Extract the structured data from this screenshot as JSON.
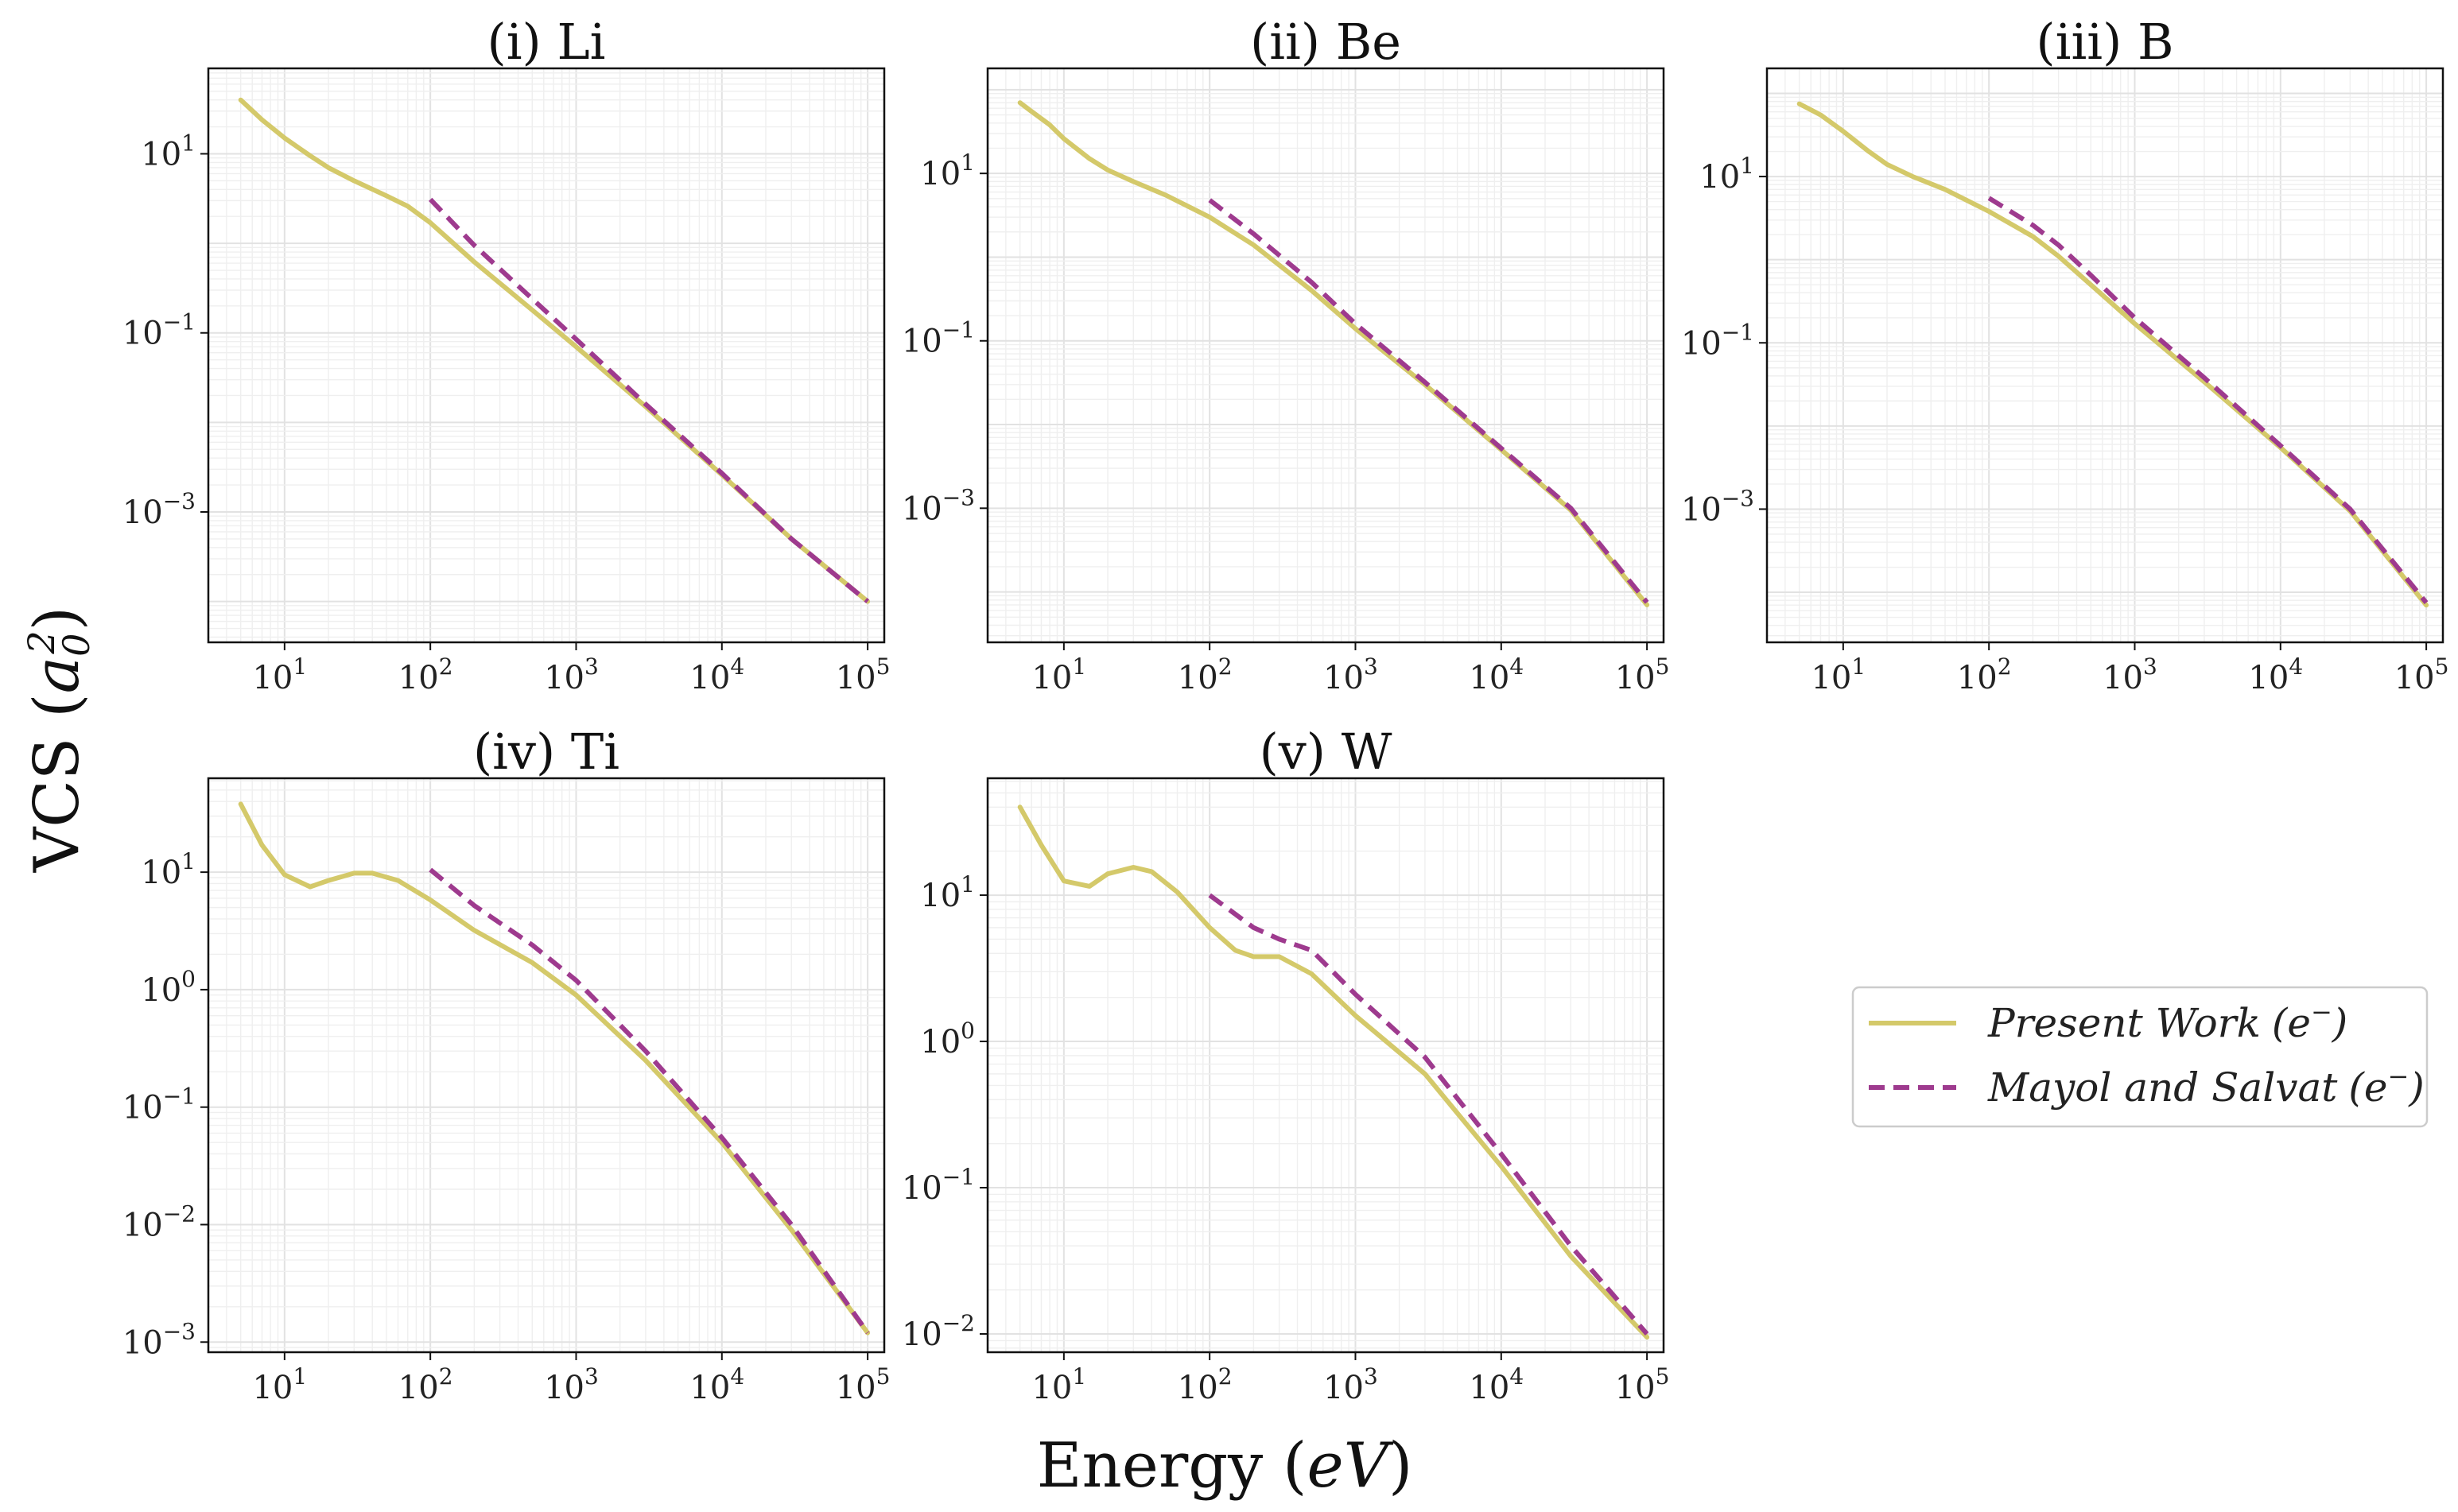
{
  "figure": {
    "xlabel_main": "Energy (",
    "xlabel_var": "eV",
    "xlabel_close": ")",
    "ylabel_main": "VCS (",
    "ylabel_var": "a",
    "ylabel_sub": "0",
    "ylabel_sup": "2",
    "ylabel_close": ")"
  },
  "legend": {
    "entries": [
      {
        "label": "Present Work",
        "suffix": "(e",
        "sup": "−",
        "close": ")",
        "color": "#d4c96a",
        "dash": false
      },
      {
        "label": "Mayol and Salvat",
        "suffix": "(e",
        "sup": "−",
        "close": ")",
        "color": "#9e3a8e",
        "dash": true
      }
    ]
  },
  "chart_data": [
    {
      "type": "line",
      "title": "(i) Li",
      "xscale": "log",
      "yscale": "log",
      "xlim": [
        3,
        130000
      ],
      "ylim": [
        3.5e-05,
        90
      ],
      "xticks": [
        10,
        100,
        1000,
        10000,
        100000
      ],
      "xtick_labels": [
        {
          "base": "10",
          "exp": "1"
        },
        {
          "base": "10",
          "exp": "2"
        },
        {
          "base": "10",
          "exp": "3"
        },
        {
          "base": "10",
          "exp": "4"
        },
        {
          "base": "10",
          "exp": "5"
        }
      ],
      "yticks": [
        10,
        0.1,
        0.001
      ],
      "ytick_labels": [
        {
          "base": "10",
          "exp": "1"
        },
        {
          "base": "10",
          "exp": "−1"
        },
        {
          "base": "10",
          "exp": "−3"
        }
      ],
      "series": [
        {
          "name": "Present Work (e−)",
          "color": "#d4c96a",
          "x": [
            5,
            7,
            10,
            15,
            20,
            30,
            50,
            70,
            100,
            200,
            500,
            1000,
            3000,
            10000,
            30000,
            100000
          ],
          "y": [
            40,
            24,
            15,
            9.5,
            7,
            5,
            3.4,
            2.6,
            1.7,
            0.62,
            0.18,
            0.07,
            0.015,
            0.0026,
            0.0005,
            0.0001
          ]
        },
        {
          "name": "Mayol and Salvat (e−)",
          "color": "#9e3a8e",
          "x": [
            100,
            200,
            500,
            1000,
            3000,
            10000,
            30000,
            100000
          ],
          "y": [
            3.1,
            0.95,
            0.24,
            0.085,
            0.016,
            0.0027,
            0.0005,
            0.0001
          ]
        }
      ]
    },
    {
      "type": "line",
      "title": "(ii) Be",
      "xscale": "log",
      "yscale": "log",
      "xlim": [
        3,
        130000
      ],
      "ylim": [
        2.5e-05,
        180
      ],
      "xticks": [
        10,
        100,
        1000,
        10000,
        100000
      ],
      "xtick_labels": [
        {
          "base": "10",
          "exp": "1"
        },
        {
          "base": "10",
          "exp": "2"
        },
        {
          "base": "10",
          "exp": "3"
        },
        {
          "base": "10",
          "exp": "4"
        },
        {
          "base": "10",
          "exp": "5"
        }
      ],
      "yticks": [
        10,
        0.1,
        0.001
      ],
      "ytick_labels": [
        {
          "base": "10",
          "exp": "1"
        },
        {
          "base": "10",
          "exp": "−1"
        },
        {
          "base": "10",
          "exp": "−3"
        }
      ],
      "series": [
        {
          "name": "Present Work (e−)",
          "color": "#d4c96a",
          "x": [
            5,
            6,
            8,
            10,
            15,
            20,
            30,
            50,
            100,
            200,
            500,
            1000,
            3000,
            10000,
            30000,
            100000
          ],
          "y": [
            70,
            55,
            38,
            26,
            15,
            11,
            8,
            5.5,
            3,
            1.4,
            0.4,
            0.14,
            0.03,
            0.005,
            0.00095,
            7e-05
          ]
        },
        {
          "name": "Mayol and Salvat (e−)",
          "color": "#9e3a8e",
          "x": [
            100,
            200,
            500,
            1000,
            3000,
            10000,
            30000,
            100000
          ],
          "y": [
            4.8,
            1.9,
            0.5,
            0.16,
            0.032,
            0.0052,
            0.001,
            7.5e-05
          ]
        }
      ]
    },
    {
      "type": "line",
      "title": "(iii) B",
      "xscale": "log",
      "yscale": "log",
      "xlim": [
        3,
        130000
      ],
      "ylim": [
        2.5e-05,
        200
      ],
      "xticks": [
        10,
        100,
        1000,
        10000,
        100000
      ],
      "xtick_labels": [
        {
          "base": "10",
          "exp": "1"
        },
        {
          "base": "10",
          "exp": "2"
        },
        {
          "base": "10",
          "exp": "3"
        },
        {
          "base": "10",
          "exp": "4"
        },
        {
          "base": "10",
          "exp": "5"
        }
      ],
      "yticks": [
        10,
        0.1,
        0.001
      ],
      "ytick_labels": [
        {
          "base": "10",
          "exp": "1"
        },
        {
          "base": "10",
          "exp": "−1"
        },
        {
          "base": "10",
          "exp": "−3"
        }
      ],
      "series": [
        {
          "name": "Present Work (e−)",
          "color": "#d4c96a",
          "x": [
            5,
            7,
            10,
            15,
            20,
            30,
            50,
            100,
            200,
            300,
            500,
            1000,
            3000,
            10000,
            30000,
            100000
          ],
          "y": [
            75,
            55,
            35,
            20,
            14,
            10,
            7,
            3.8,
            1.9,
            1.1,
            0.5,
            0.17,
            0.034,
            0.0055,
            0.00095,
            7e-05
          ]
        },
        {
          "name": "Mayol and Salvat (e−)",
          "color": "#9e3a8e",
          "x": [
            100,
            200,
            300,
            500,
            1000,
            3000,
            10000,
            30000,
            100000
          ],
          "y": [
            5.5,
            2.6,
            1.5,
            0.65,
            0.2,
            0.038,
            0.0058,
            0.001,
            7.5e-05
          ]
        }
      ]
    },
    {
      "type": "line",
      "title": "(iv) Ti",
      "xscale": "log",
      "yscale": "log",
      "xlim": [
        3,
        130000
      ],
      "ylim": [
        0.00082,
        63
      ],
      "xticks": [
        10,
        100,
        1000,
        10000,
        100000
      ],
      "xtick_labels": [
        {
          "base": "10",
          "exp": "1"
        },
        {
          "base": "10",
          "exp": "2"
        },
        {
          "base": "10",
          "exp": "3"
        },
        {
          "base": "10",
          "exp": "4"
        },
        {
          "base": "10",
          "exp": "5"
        }
      ],
      "yticks": [
        10,
        1,
        0.1,
        0.01,
        0.001
      ],
      "ytick_labels": [
        {
          "base": "10",
          "exp": "1"
        },
        {
          "base": "10",
          "exp": "0"
        },
        {
          "base": "10",
          "exp": "−1"
        },
        {
          "base": "10",
          "exp": "−2"
        },
        {
          "base": "10",
          "exp": "−3"
        }
      ],
      "series": [
        {
          "name": "Present Work (e−)",
          "color": "#d4c96a",
          "x": [
            5,
            7,
            10,
            15,
            20,
            30,
            40,
            60,
            100,
            200,
            500,
            1000,
            3000,
            10000,
            30000,
            100000
          ],
          "y": [
            38,
            17,
            9.5,
            7.5,
            8.5,
            9.8,
            9.8,
            8.5,
            5.8,
            3.2,
            1.7,
            0.9,
            0.25,
            0.05,
            0.009,
            0.0012
          ]
        },
        {
          "name": "Mayol and Salvat (e−)",
          "color": "#9e3a8e",
          "x": [
            100,
            200,
            500,
            1000,
            3000,
            10000,
            30000,
            100000
          ],
          "y": [
            10.5,
            5.2,
            2.4,
            1.2,
            0.3,
            0.055,
            0.01,
            0.0012
          ]
        }
      ]
    },
    {
      "type": "line",
      "title": "(v) W",
      "xscale": "log",
      "yscale": "log",
      "xlim": [
        3,
        130000
      ],
      "ylim": [
        0.0075,
        63
      ],
      "xticks": [
        10,
        100,
        1000,
        10000,
        100000
      ],
      "xtick_labels": [
        {
          "base": "10",
          "exp": "1"
        },
        {
          "base": "10",
          "exp": "2"
        },
        {
          "base": "10",
          "exp": "3"
        },
        {
          "base": "10",
          "exp": "4"
        },
        {
          "base": "10",
          "exp": "5"
        }
      ],
      "yticks": [
        10,
        1,
        0.1,
        0.01
      ],
      "ytick_labels": [
        {
          "base": "10",
          "exp": "1"
        },
        {
          "base": "10",
          "exp": "0"
        },
        {
          "base": "10",
          "exp": "−1"
        },
        {
          "base": "10",
          "exp": "−2"
        }
      ],
      "series": [
        {
          "name": "Present Work (e−)",
          "color": "#d4c96a",
          "x": [
            5,
            7,
            10,
            15,
            20,
            30,
            40,
            60,
            100,
            150,
            200,
            300,
            500,
            1000,
            3000,
            10000,
            30000,
            100000
          ],
          "y": [
            40,
            22,
            12.5,
            11.5,
            14,
            15.5,
            14.5,
            10.5,
            6,
            4.2,
            3.8,
            3.8,
            2.9,
            1.5,
            0.6,
            0.14,
            0.034,
            0.0095
          ]
        },
        {
          "name": "Mayol and Salvat (e−)",
          "color": "#9e3a8e",
          "x": [
            100,
            200,
            300,
            500,
            1000,
            3000,
            10000,
            30000,
            100000
          ],
          "y": [
            10,
            6,
            5,
            4.2,
            2.1,
            0.78,
            0.17,
            0.04,
            0.01
          ]
        }
      ]
    }
  ]
}
